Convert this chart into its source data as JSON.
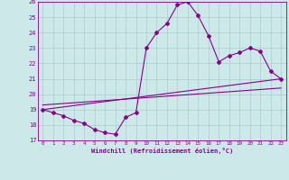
{
  "xlabel": "Windchill (Refroidissement éolien,°C)",
  "xlim": [
    -0.5,
    23.5
  ],
  "ylim": [
    17,
    26
  ],
  "yticks": [
    17,
    18,
    19,
    20,
    21,
    22,
    23,
    24,
    25,
    26
  ],
  "xticks": [
    0,
    1,
    2,
    3,
    4,
    5,
    6,
    7,
    8,
    9,
    10,
    11,
    12,
    13,
    14,
    15,
    16,
    17,
    18,
    19,
    20,
    21,
    22,
    23
  ],
  "bg_color": "#cce8e8",
  "grid_color": "#aacccc",
  "line_color": "#880088",
  "curve_x": [
    0,
    1,
    2,
    3,
    4,
    5,
    6,
    7,
    8,
    9,
    10,
    11,
    12,
    13,
    14,
    15,
    16,
    17,
    18,
    19,
    20,
    21,
    22,
    23
  ],
  "curve_y": [
    19.0,
    18.8,
    18.6,
    18.3,
    18.1,
    17.7,
    17.5,
    17.4,
    18.5,
    18.8,
    23.0,
    24.0,
    24.6,
    25.8,
    26.0,
    25.1,
    23.8,
    22.1,
    22.5,
    22.7,
    23.0,
    22.8,
    21.5,
    21.0
  ],
  "line1_x": [
    0,
    23
  ],
  "line1_y": [
    19.0,
    21.0
  ],
  "line2_x": [
    0,
    23
  ],
  "line2_y": [
    19.3,
    20.4
  ]
}
